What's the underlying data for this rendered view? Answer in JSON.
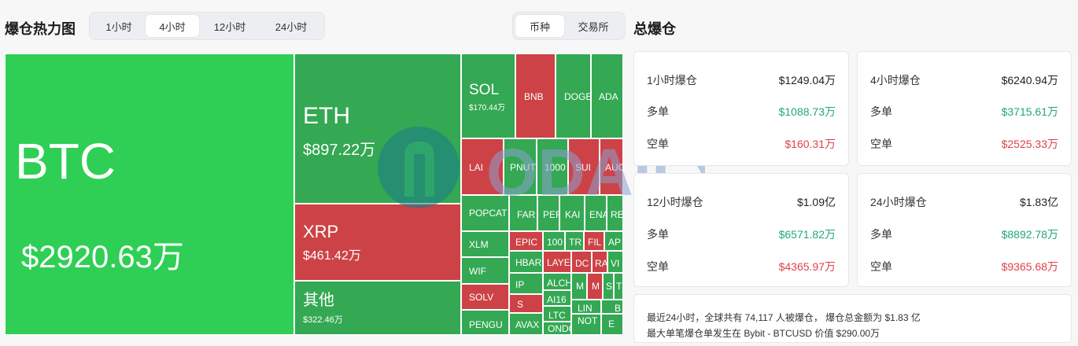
{
  "heatmap": {
    "title": "爆仓热力图",
    "time_tabs": [
      "1小时",
      "4小时",
      "12小时",
      "24小时"
    ],
    "active_time_tab": "4小时",
    "group_tabs": [
      "币种",
      "交易所"
    ],
    "active_group_tab": "币种",
    "tiles": [
      {
        "symbol": "BTC",
        "value": "$2920.63万"
      },
      {
        "symbol": "ETH",
        "value": "$897.22万"
      },
      {
        "symbol": "XRP",
        "value": "$461.42万"
      },
      {
        "symbol": "其他",
        "value": "$322.46万"
      },
      {
        "symbol": "SOL",
        "value": "$170.44万"
      },
      {
        "symbol": "BNB"
      },
      {
        "symbol": "DOGE"
      },
      {
        "symbol": "ADA"
      },
      {
        "symbol": "LAI"
      },
      {
        "symbol": "PNUT"
      },
      {
        "symbol": "1000"
      },
      {
        "symbol": "SUI"
      },
      {
        "symbol": "AUC"
      },
      {
        "symbol": "POPCAT"
      },
      {
        "symbol": "FAR"
      },
      {
        "symbol": "PEF"
      },
      {
        "symbol": "KAI"
      },
      {
        "symbol": "ENA"
      },
      {
        "symbol": "RE"
      },
      {
        "symbol": "XLM"
      },
      {
        "symbol": "EPIC"
      },
      {
        "symbol": "100"
      },
      {
        "symbol": "TR"
      },
      {
        "symbol": "FIL"
      },
      {
        "symbol": "AP"
      },
      {
        "symbol": "WIF"
      },
      {
        "symbol": "HBAR"
      },
      {
        "symbol": "LAYE"
      },
      {
        "symbol": "DC"
      },
      {
        "symbol": "RA"
      },
      {
        "symbol": "VI"
      },
      {
        "symbol": "IP"
      },
      {
        "symbol": "ALCH"
      },
      {
        "symbol": "M"
      },
      {
        "symbol": "M"
      },
      {
        "symbol": "S"
      },
      {
        "symbol": "T"
      },
      {
        "symbol": "SOLV"
      },
      {
        "symbol": "S"
      },
      {
        "symbol": "AI16"
      },
      {
        "symbol": "LIN"
      },
      {
        "symbol": "B"
      },
      {
        "symbol": "PENGU"
      },
      {
        "symbol": "AVAX"
      },
      {
        "symbol": "LTC"
      },
      {
        "symbol": "NOT"
      },
      {
        "symbol": "ONDO"
      },
      {
        "symbol": "E"
      }
    ]
  },
  "watermark_text": "ODAILY",
  "total": {
    "title": "总爆仓",
    "cards": [
      {
        "label": "1小时爆仓",
        "value": "$1249.04万",
        "long_label": "多单",
        "long_value": "$1088.73万",
        "short_label": "空单",
        "short_value": "$160.31万"
      },
      {
        "label": "4小时爆仓",
        "value": "$6240.94万",
        "long_label": "多单",
        "long_value": "$3715.61万",
        "short_label": "空单",
        "short_value": "$2525.33万"
      },
      {
        "label": "12小时爆仓",
        "value": "$1.09亿",
        "long_label": "多单",
        "long_value": "$6571.82万",
        "short_label": "空单",
        "short_value": "$4365.97万"
      },
      {
        "label": "24小时爆仓",
        "value": "$1.83亿",
        "long_label": "多单",
        "long_value": "$8892.78万",
        "short_label": "空单",
        "short_value": "$9365.68万"
      }
    ],
    "summary_line1": "最近24小时，全球共有 74,117 人被爆仓， 爆仓总金额为 $1.83 亿",
    "summary_line2": "最大单笔爆仓单发生在 Bybit - BTCUSD 价值 $290.00万"
  },
  "colors": {
    "long": "#22a67a",
    "short": "#e0424a",
    "tile_green_bright": "#2fcf55",
    "tile_green": "#34a853",
    "tile_red": "#cd4246"
  }
}
